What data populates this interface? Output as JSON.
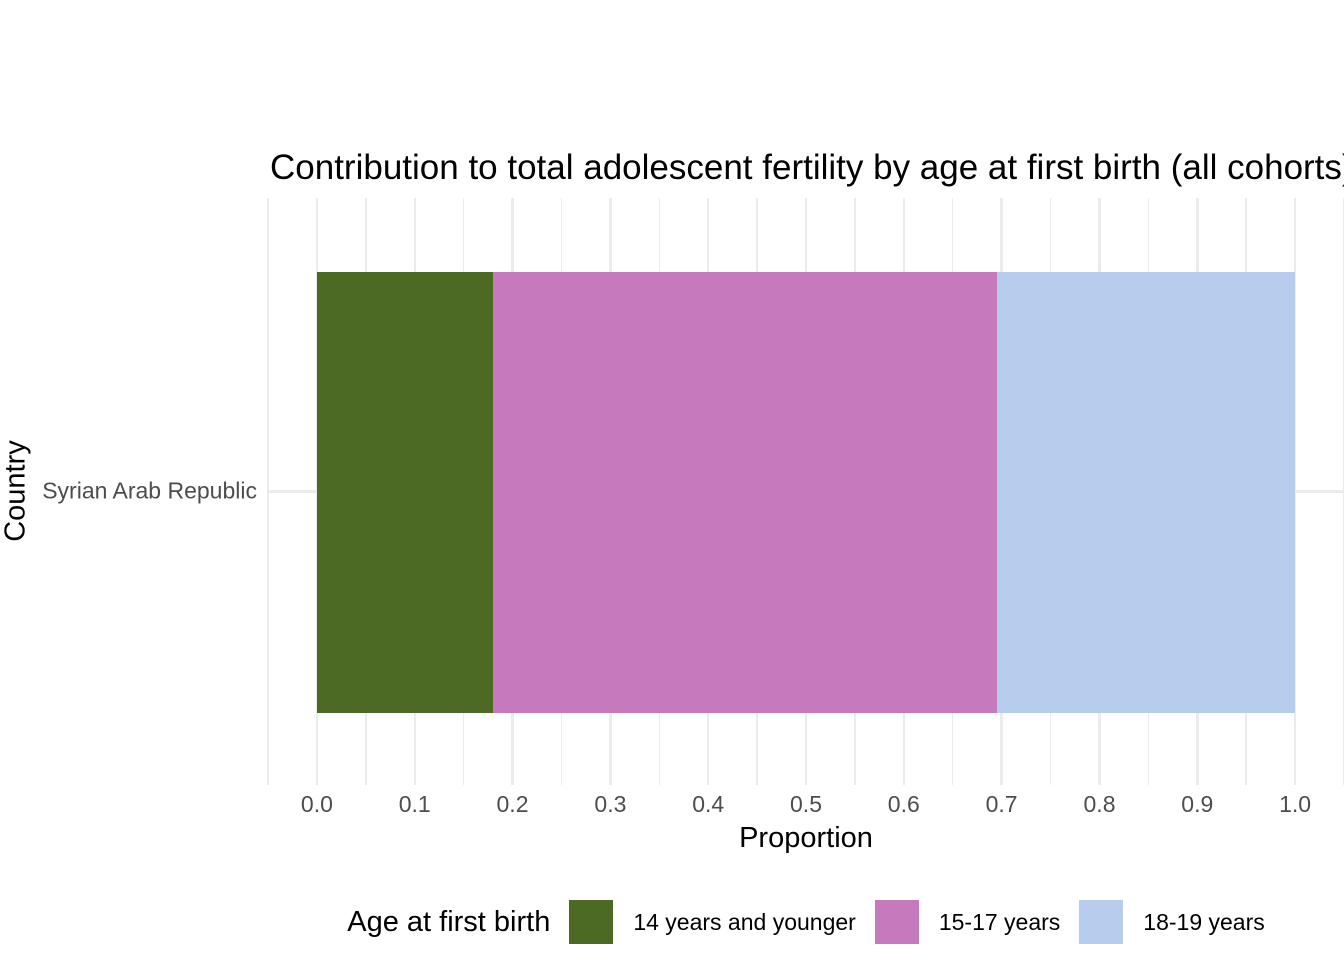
{
  "chart_data": {
    "type": "bar",
    "orientation": "horizontal",
    "stacked": true,
    "title": "Contribution to total adolescent fertility by age at first birth (all cohorts)",
    "xlabel": "Proportion",
    "ylabel": "Country",
    "categories": [
      "Syrian Arab Republic"
    ],
    "series": [
      {
        "name": "14 years and younger",
        "value": 0.18,
        "color": "#4C6A23"
      },
      {
        "name": "15-17 years",
        "value": 0.515,
        "color": "#C679BC"
      },
      {
        "name": "18-19 years",
        "value": 0.305,
        "color": "#B6CDEE"
      }
    ],
    "xlim": [
      -0.05,
      1.05
    ],
    "x_ticks": [
      {
        "value": 0.0,
        "label": "0.0"
      },
      {
        "value": 0.1,
        "label": "0.1"
      },
      {
        "value": 0.2,
        "label": "0.2"
      },
      {
        "value": 0.3,
        "label": "0.3"
      },
      {
        "value": 0.4,
        "label": "0.4"
      },
      {
        "value": 0.5,
        "label": "0.5"
      },
      {
        "value": 0.6,
        "label": "0.6"
      },
      {
        "value": 0.7,
        "label": "0.7"
      },
      {
        "value": 0.8,
        "label": "0.8"
      },
      {
        "value": 0.9,
        "label": "0.9"
      },
      {
        "value": 1.0,
        "label": "1.0"
      }
    ],
    "minor_grid_step": 0.05,
    "grid": "major+minor vertical, one horizontal category line",
    "legend": {
      "title": "Age at first birth",
      "position": "bottom",
      "entries": [
        "14 years and younger",
        "15-17 years",
        "18-19 years"
      ]
    },
    "colors": {
      "background": "#FFFFFF",
      "gridline": "#EBEBEB",
      "tick_label": "#4D4D4D",
      "title_text": "#000000"
    }
  }
}
